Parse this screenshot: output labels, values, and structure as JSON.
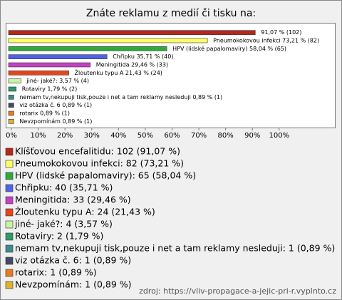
{
  "chart_data": {
    "type": "bar",
    "orientation": "horizontal",
    "title": "Znáte reklamu z medií či tisku na:",
    "categories": [
      "Klíšťovou encefalitidu",
      "Pneumokokovou infekci",
      "HPV (lidské papalomaviry)",
      "Chřipku",
      "Meningitida",
      "Žloutenku typu A",
      "jiné- jaké?:",
      "Rotaviry",
      "nemam tv,nekupuji tisk,pouze i net a tam reklamy nesleduji",
      "viz otázka č. 6",
      "rotarix",
      "Nevzpomínám"
    ],
    "values": [
      91.07,
      73.21,
      58.04,
      35.71,
      29.46,
      21.43,
      3.57,
      1.79,
      0.89,
      0.89,
      0.89,
      0.89
    ],
    "value_labels": [
      "91,07 % (102)",
      "Pneumokokovou infekci 73,21 % (82)",
      "HPV (lidské papalomaviry) 58,04 % (65)",
      "Chřipku 35,71 % (40)",
      "Meningitida 29,46 % (33)",
      "Žloutenku typu A 21,43 % (24)",
      "jiné- jaké?: 3,57 % (4)",
      "Rotaviry 1,79 % (2)",
      "nemam tv,nekupuji tisk,pouze i net a tam reklamy nesleduji 0,89 % (1)",
      "viz otázka č. 6 0,89 % (1)",
      "rotarix 0,89 % (1)",
      "Nevzpomínám 0,89 % (1)"
    ],
    "legend_labels": [
      "Klíšťovou encefalitidu: 102 (91,07 %)",
      "Pneumokokovou infekci: 82 (73,21 %)",
      "HPV (lidské papalomaviry): 65 (58,04 %)",
      "Chřipku: 40 (35,71 %)",
      "Meningitida: 33 (29,46 %)",
      "Žloutenku typu A: 24 (21,43 %)",
      "jiné- jaké?: 4 (3,57 %)",
      "Rotaviry: 2 (1,79 %)",
      "nemam tv,nekupuji tisk,pouze i net a tam reklamy nesleduji: 1 (0,89 %)",
      "viz otázka č. 6: 1 (0,89 %)",
      "rotarix: 1 (0,89 %)",
      "Nevzpomínám: 1 (0,89 %)"
    ],
    "colors": [
      "#b8261c",
      "#ffff66",
      "#2faa3a",
      "#4f63e8",
      "#c640c6",
      "#e8441c",
      "#c8f5a0",
      "#2f9a6a",
      "#3f8a8a",
      "#444a66",
      "#e87a22",
      "#e0b030"
    ],
    "xlim": [
      0,
      120
    ],
    "xticks": [
      {
        "value": 0,
        "label": "0%"
      },
      {
        "value": 10,
        "label": "10%"
      },
      {
        "value": 20,
        "label": "20%"
      },
      {
        "value": 30,
        "label": "30%"
      },
      {
        "value": 40,
        "label": "40%"
      },
      {
        "value": 50,
        "label": "50%"
      },
      {
        "value": 60,
        "label": "60%"
      },
      {
        "value": 70,
        "label": "70%"
      },
      {
        "value": 80,
        "label": "80%"
      },
      {
        "value": 90,
        "label": "90%"
      },
      {
        "value": 100,
        "label": "100%"
      }
    ],
    "source": "zdroj: https://vliv-propagace-a-jejic-pri-r.vyplnto.cz"
  }
}
